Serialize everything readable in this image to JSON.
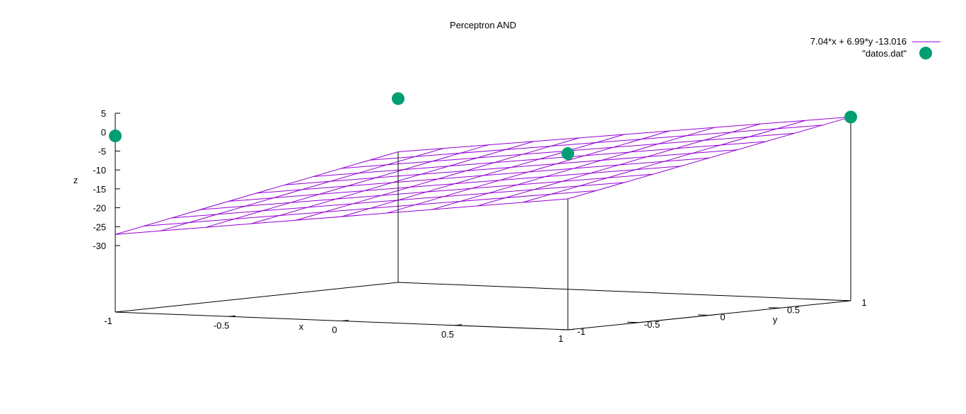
{
  "chart_data": {
    "type": "surface3d",
    "title": "Perceptron AND",
    "xlabel": "x",
    "ylabel": "y",
    "zlabel": "z",
    "xlim": [
      -1,
      1
    ],
    "ylim": [
      -1,
      1
    ],
    "zlim": [
      -30,
      5
    ],
    "x_ticks": [
      "-1",
      "-0.5",
      "0",
      "0.5",
      "1"
    ],
    "y_ticks": [
      "-1",
      "-0.5",
      "0",
      "0.5",
      "1"
    ],
    "z_ticks": [
      "5",
      "0",
      "-5",
      "-10",
      "-15",
      "-20",
      "-25",
      "-30"
    ],
    "legend_position": "top-right",
    "series": [
      {
        "name": "7.04*x + 6.99*y -13.016",
        "kind": "surface",
        "coefficients": {
          "x": 7.04,
          "y": 6.99,
          "const": -13.016
        },
        "grid_lines": 10,
        "color": "#9400d3"
      },
      {
        "name": "\"datos.dat\"",
        "kind": "points",
        "color": "#009e73",
        "points": [
          {
            "x": -1,
            "y": -1,
            "z": -1
          },
          {
            "x": -1,
            "y": 1,
            "z": 1
          },
          {
            "x": 1,
            "y": -1,
            "z": -1
          },
          {
            "x": 1,
            "y": 1,
            "z": 1
          }
        ]
      }
    ]
  }
}
